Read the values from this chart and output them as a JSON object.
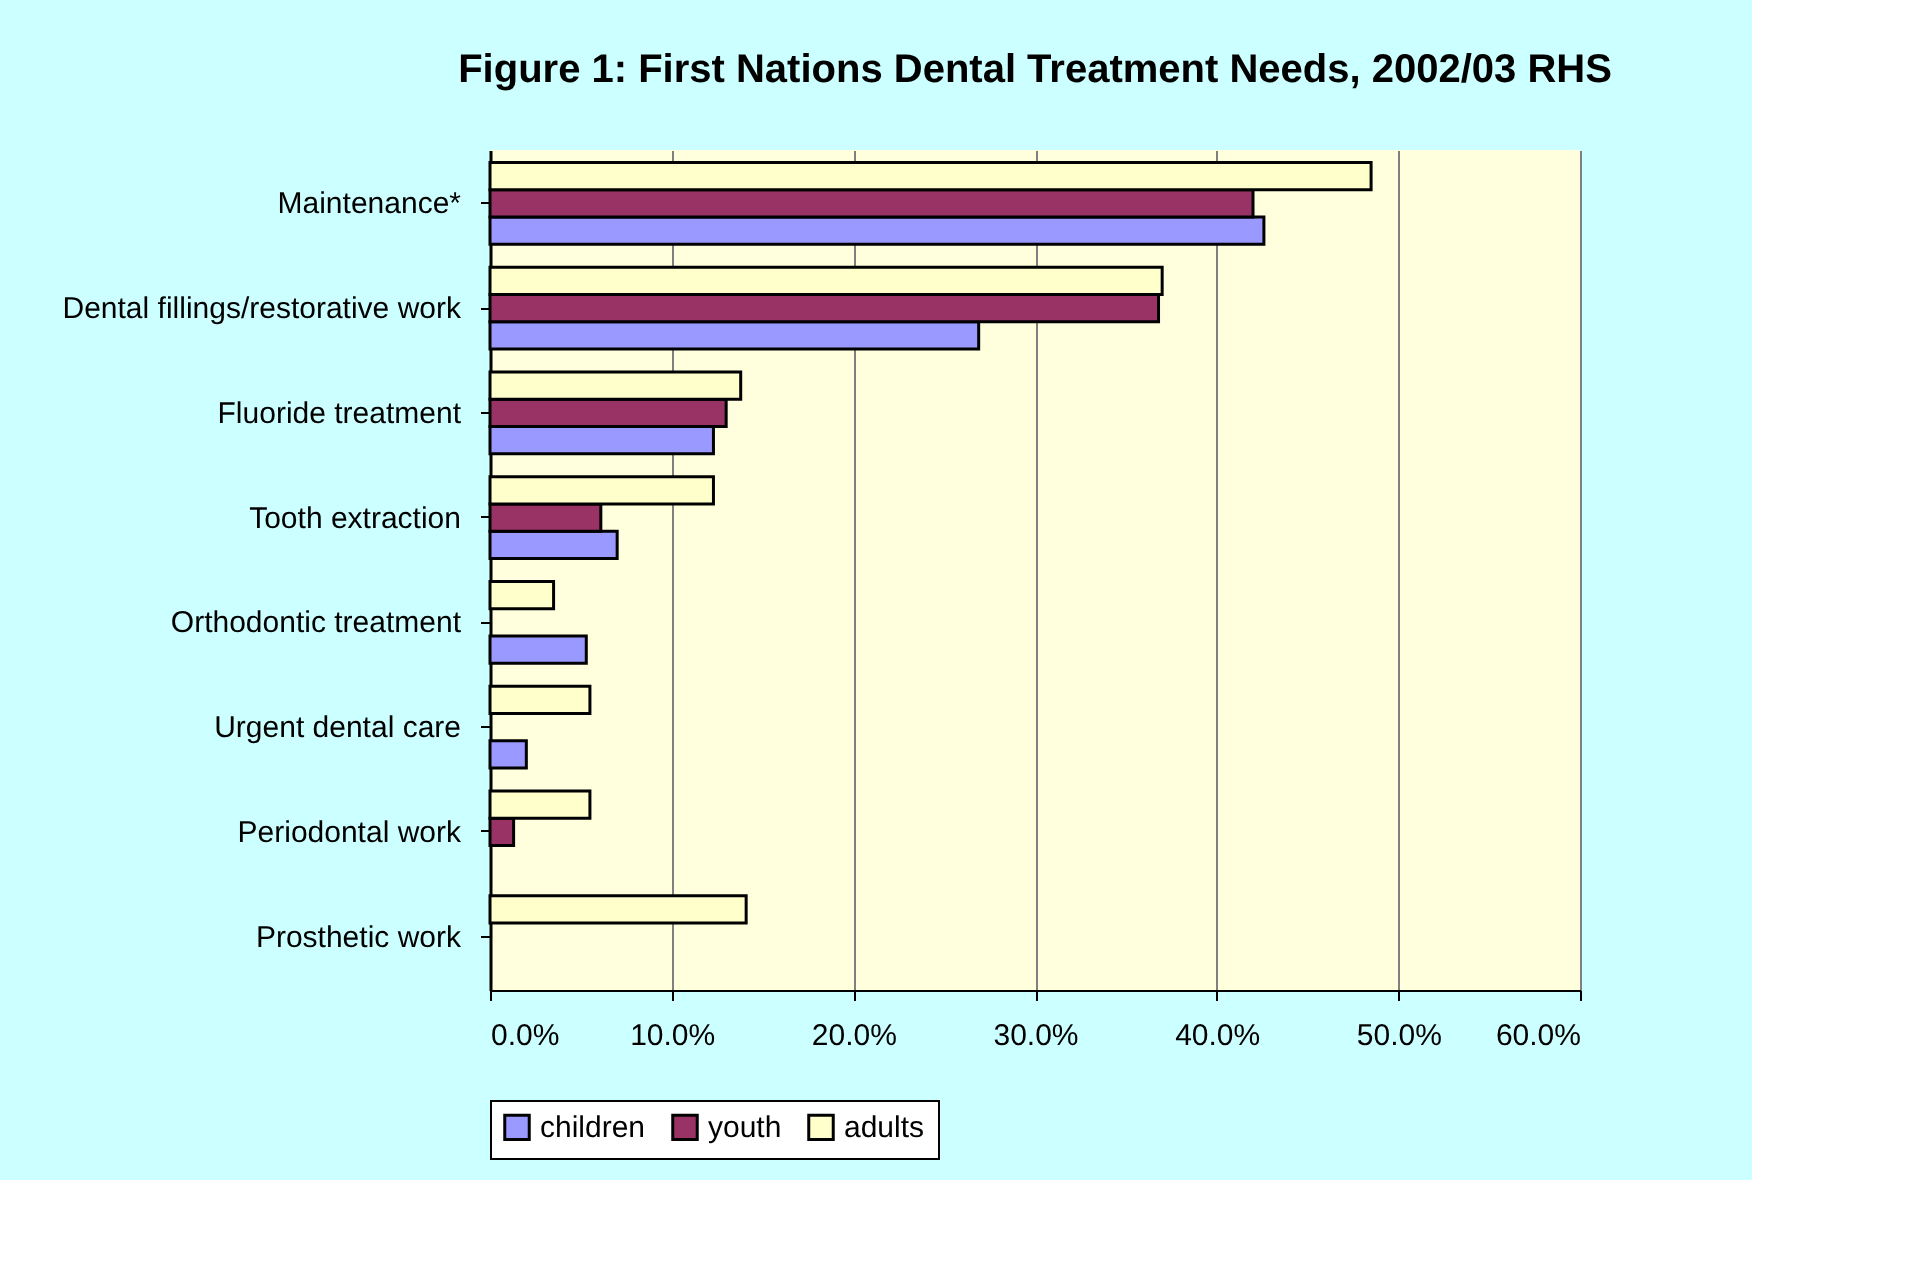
{
  "chart_data": {
    "type": "bar",
    "orientation": "horizontal",
    "title": "Figure 1: First Nations Dental Treatment Needs, 2002/03 RHS",
    "categories": [
      "Maintenance*",
      "Dental fillings/restorative work",
      "Fluoride treatment",
      "Tooth extraction",
      "Orthodontic treatment",
      "Urgent dental care",
      "Periodontal work",
      "Prosthetic work"
    ],
    "series": [
      {
        "name": "children",
        "color": "#9999ff",
        "values": [
          42.6,
          26.9,
          12.3,
          7.0,
          5.3,
          2.0,
          null,
          null
        ]
      },
      {
        "name": "youth",
        "color": "#993366",
        "values": [
          42.0,
          36.8,
          13.0,
          6.1,
          null,
          null,
          1.3,
          null
        ]
      },
      {
        "name": "adults",
        "color": "#ffffcc",
        "values": [
          48.5,
          37.0,
          13.8,
          12.3,
          3.5,
          5.5,
          5.5,
          14.1
        ]
      }
    ],
    "xlim": [
      0,
      60
    ],
    "xticks": [
      {
        "value": 0,
        "label": "0.0%"
      },
      {
        "value": 10,
        "label": "10.0%"
      },
      {
        "value": 20,
        "label": "20.0%"
      },
      {
        "value": 30,
        "label": "30.0%"
      },
      {
        "value": 40,
        "label": "40.0%"
      },
      {
        "value": 50,
        "label": "50.0%"
      },
      {
        "value": 60,
        "label": "60.0%"
      }
    ],
    "grid": "x",
    "legend": "bottom"
  }
}
